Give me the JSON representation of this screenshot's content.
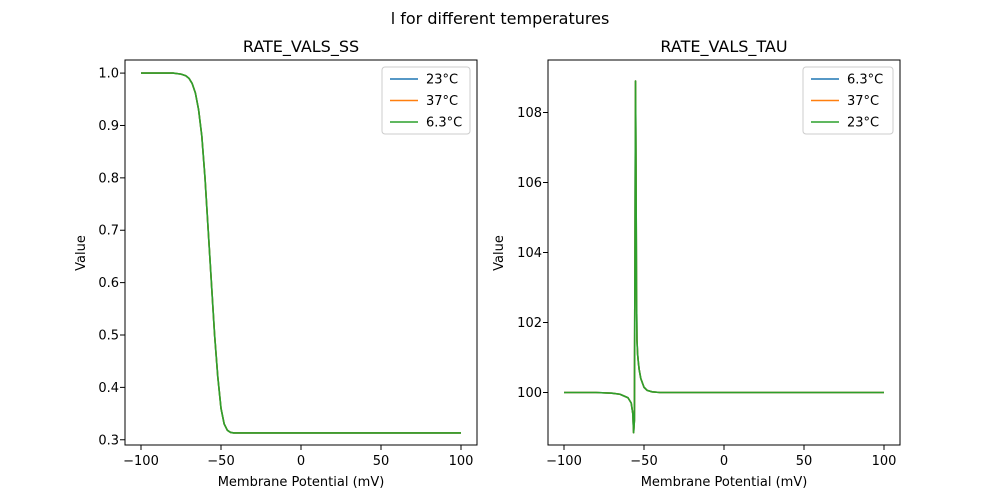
{
  "figure": {
    "title": "l for different temperatures"
  },
  "colors": {
    "c23": "#1f77b4",
    "c37": "#ff7f0e",
    "c63": "#2ca02c"
  },
  "chart_data": [
    {
      "id": "ss",
      "type": "line",
      "title": "RATE_VALS_SS",
      "xlabel": "Membrane Potential (mV)",
      "ylabel": "Value",
      "xlim": [
        -110,
        110
      ],
      "ylim": [
        0.29,
        1.025
      ],
      "xticks": [
        -100,
        -50,
        0,
        50,
        100
      ],
      "yticks": [
        0.3,
        0.4,
        0.5,
        0.6,
        0.7,
        0.8,
        0.9,
        1.0
      ],
      "ytick_labels": [
        "0.3",
        "0.4",
        "0.5",
        "0.6",
        "0.7",
        "0.8",
        "0.9",
        "1.0"
      ],
      "legend_position": "top-right",
      "series": [
        {
          "name": "23°C",
          "color": "#1f77b4",
          "x": [
            -100,
            -80,
            -75,
            -72,
            -70,
            -68,
            -66,
            -64,
            -62,
            -60,
            -58,
            -56,
            -55,
            -54,
            -52,
            -50,
            -48,
            -46,
            -44,
            -42,
            -40,
            -35,
            -30,
            0,
            50,
            100
          ],
          "y": [
            1.0,
            1.0,
            0.998,
            0.995,
            0.99,
            0.98,
            0.962,
            0.93,
            0.88,
            0.8,
            0.7,
            0.6,
            0.55,
            0.5,
            0.42,
            0.36,
            0.33,
            0.318,
            0.314,
            0.313,
            0.313,
            0.313,
            0.313,
            0.313,
            0.313,
            0.313
          ]
        },
        {
          "name": "37°C",
          "color": "#ff7f0e",
          "x": [
            -100,
            -80,
            -75,
            -72,
            -70,
            -68,
            -66,
            -64,
            -62,
            -60,
            -58,
            -56,
            -55,
            -54,
            -52,
            -50,
            -48,
            -46,
            -44,
            -42,
            -40,
            -35,
            -30,
            0,
            50,
            100
          ],
          "y": [
            1.0,
            1.0,
            0.998,
            0.995,
            0.99,
            0.98,
            0.962,
            0.93,
            0.88,
            0.8,
            0.7,
            0.6,
            0.55,
            0.5,
            0.42,
            0.36,
            0.33,
            0.318,
            0.314,
            0.313,
            0.313,
            0.313,
            0.313,
            0.313,
            0.313,
            0.313
          ]
        },
        {
          "name": "6.3°C",
          "color": "#2ca02c",
          "x": [
            -100,
            -80,
            -75,
            -72,
            -70,
            -68,
            -66,
            -64,
            -62,
            -60,
            -58,
            -56,
            -55,
            -54,
            -52,
            -50,
            -48,
            -46,
            -44,
            -42,
            -40,
            -35,
            -30,
            0,
            50,
            100
          ],
          "y": [
            1.0,
            1.0,
            0.998,
            0.995,
            0.99,
            0.98,
            0.962,
            0.93,
            0.88,
            0.8,
            0.7,
            0.6,
            0.55,
            0.5,
            0.42,
            0.36,
            0.33,
            0.318,
            0.314,
            0.313,
            0.313,
            0.313,
            0.313,
            0.313,
            0.313,
            0.313
          ]
        }
      ]
    },
    {
      "id": "tau",
      "type": "line",
      "title": "RATE_VALS_TAU",
      "xlabel": "Membrane Potential (mV)",
      "ylabel": "Value",
      "xlim": [
        -110,
        110
      ],
      "ylim": [
        98.5,
        109.5
      ],
      "xticks": [
        -100,
        -50,
        0,
        50,
        100
      ],
      "yticks": [
        100,
        102,
        104,
        106,
        108
      ],
      "ytick_labels": [
        "100",
        "102",
        "104",
        "106",
        "108"
      ],
      "legend_position": "top-right",
      "series": [
        {
          "name": "6.3°C",
          "color": "#1f77b4",
          "x": [
            -100,
            -80,
            -70,
            -65,
            -60,
            -58,
            -57,
            -56.5,
            -56,
            -55.6,
            -55.3,
            -55,
            -54.7,
            -54.4,
            -54,
            -53.5,
            -53,
            -52,
            -50,
            -48,
            -45,
            -40,
            -30,
            0,
            50,
            100
          ],
          "y": [
            100,
            100,
            99.98,
            99.95,
            99.85,
            99.7,
            99.4,
            98.85,
            99.2,
            104.5,
            108.9,
            106.5,
            103,
            101.5,
            101.1,
            100.85,
            100.65,
            100.4,
            100.15,
            100.06,
            100.02,
            100,
            100,
            100,
            100,
            100
          ]
        },
        {
          "name": "37°C",
          "color": "#ff7f0e",
          "x": [
            -100,
            -80,
            -70,
            -65,
            -60,
            -58,
            -57,
            -56.5,
            -56,
            -55.6,
            -55.3,
            -55,
            -54.7,
            -54.4,
            -54,
            -53.5,
            -53,
            -52,
            -50,
            -48,
            -45,
            -40,
            -30,
            0,
            50,
            100
          ],
          "y": [
            100,
            100,
            99.98,
            99.95,
            99.85,
            99.7,
            99.4,
            98.85,
            99.2,
            104.5,
            108.9,
            106.5,
            103,
            101.5,
            101.1,
            100.85,
            100.65,
            100.4,
            100.15,
            100.06,
            100.02,
            100,
            100,
            100,
            100,
            100
          ]
        },
        {
          "name": "23°C",
          "color": "#2ca02c",
          "x": [
            -100,
            -80,
            -70,
            -65,
            -60,
            -58,
            -57,
            -56.5,
            -56,
            -55.6,
            -55.3,
            -55,
            -54.7,
            -54.4,
            -54,
            -53.5,
            -53,
            -52,
            -50,
            -48,
            -45,
            -40,
            -30,
            0,
            50,
            100
          ],
          "y": [
            100,
            100,
            99.98,
            99.95,
            99.85,
            99.7,
            99.4,
            98.85,
            99.2,
            104.5,
            108.9,
            106.5,
            103,
            101.5,
            101.1,
            100.85,
            100.65,
            100.4,
            100.15,
            100.06,
            100.02,
            100,
            100,
            100,
            100,
            100
          ]
        }
      ]
    }
  ]
}
